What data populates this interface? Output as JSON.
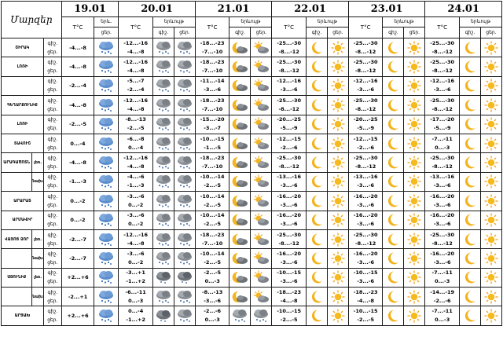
{
  "header": {
    "title": "Մարզեր",
    "dates": [
      "19.01",
      "20.01",
      "21.01",
      "22.01",
      "23.01",
      "24.01"
    ],
    "temp_label": "T°C",
    "weather_label_first": "երև.",
    "weather_label": "երևույթ",
    "day_label": "ցեր.",
    "night_label_short": "գիշ.",
    "night_label": "գիշ.",
    "day_label2": "ցեր."
  },
  "rows": [
    {
      "region": "ՇԻՐԱԿ",
      "sub": "",
      "times": [
        "գիշ.",
        "ցեր."
      ],
      "d19": {
        "temp": "-4...-8",
        "icon": "snow"
      },
      "d20": {
        "temp": [
          "-12...-16",
          "-4...-8"
        ],
        "icons": [
          "cloud-snow",
          "cloud-snow"
        ]
      },
      "d21": {
        "temp": [
          "-18...-23",
          "-7...-10"
        ],
        "icons": [
          "moon-cloud",
          "sun-cloud"
        ]
      },
      "d22": {
        "temp": [
          "-25...-30",
          "-8...-12"
        ],
        "icons": [
          "moon",
          "sun"
        ]
      },
      "d23": {
        "temp": [
          "-25...-30",
          "-8...-12"
        ],
        "icons": [
          "moon",
          "sun"
        ]
      },
      "d24": {
        "temp": [
          "-25...-30",
          "-8...-12"
        ],
        "icons": [
          "moon",
          "sun"
        ]
      }
    },
    {
      "region": "ԼՈՌԻ",
      "sub": "",
      "times": [
        "գիշ.",
        "ցեր."
      ],
      "d19": {
        "temp": "-4...-8",
        "icon": "snow"
      },
      "d20": {
        "temp": [
          "-12...-16",
          "-4...-8"
        ],
        "icons": [
          "cloud-snow",
          "cloud-snow"
        ]
      },
      "d21": {
        "temp": [
          "-18...-23",
          "-7...-10"
        ],
        "icons": [
          "moon-cloud",
          "sun-cloud"
        ]
      },
      "d22": {
        "temp": [
          "-25...-30",
          "-8...-12"
        ],
        "icons": [
          "moon",
          "sun"
        ]
      },
      "d23": {
        "temp": [
          "-25...-30",
          "-8...-12"
        ],
        "icons": [
          "moon",
          "sun"
        ]
      },
      "d24": {
        "temp": [
          "-25...-30",
          "-8...-12"
        ],
        "icons": [
          "moon",
          "sun"
        ]
      }
    },
    {
      "region": "",
      "sub": "",
      "times": [
        "գիշ.",
        "ցեր."
      ],
      "d19": {
        "temp": "-2...-4",
        "icon": "snow"
      },
      "d20": {
        "temp": [
          "-5...-7",
          "-2...-4"
        ],
        "icons": [
          "cloud-snow",
          "cloud-snow"
        ]
      },
      "d21": {
        "temp": [
          "-11...-14",
          "-3...-6"
        ],
        "icons": [
          "moon-cloud",
          "sun-cloud"
        ]
      },
      "d22": {
        "temp": [
          "-12...-16",
          "-3...-6"
        ],
        "icons": [
          "moon",
          "sun"
        ]
      },
      "d23": {
        "temp": [
          "-12...-16",
          "-3...-6"
        ],
        "icons": [
          "moon",
          "sun"
        ]
      },
      "d24": {
        "temp": [
          "-12...-16",
          "-3...-6"
        ],
        "icons": [
          "moon",
          "sun"
        ]
      }
    },
    {
      "region": "ԳԵՂԱՐՔՈՒՆԻՔ",
      "sub": "",
      "times": [
        "գիշ.",
        "ցեր."
      ],
      "d19": {
        "temp": "-4...-8",
        "icon": "snow"
      },
      "d20": {
        "temp": [
          "-12...-16",
          "-4...-8"
        ],
        "icons": [
          "cloud-snow",
          "cloud-snow"
        ]
      },
      "d21": {
        "temp": [
          "-18...-23",
          "-7...-10"
        ],
        "icons": [
          "moon-cloud",
          "sun-cloud"
        ]
      },
      "d22": {
        "temp": [
          "-25...-30",
          "-8...-12"
        ],
        "icons": [
          "moon",
          "sun"
        ]
      },
      "d23": {
        "temp": [
          "-25...-30",
          "-8...-12"
        ],
        "icons": [
          "moon",
          "sun"
        ]
      },
      "d24": {
        "temp": [
          "-25...-30",
          "-8...-12"
        ],
        "icons": [
          "moon",
          "sun"
        ]
      }
    },
    {
      "region": "ԼՈՌԻ",
      "sub": "",
      "times": [
        "գիշ.",
        "ցեր."
      ],
      "d19": {
        "temp": "-2...-5",
        "icon": "snow"
      },
      "d20": {
        "temp": [
          "-8...-13",
          "-2...-5"
        ],
        "icons": [
          "cloud-snow",
          "cloud-snow"
        ]
      },
      "d21": {
        "temp": [
          "-15...-20",
          "-3...-7"
        ],
        "icons": [
          "moon-cloud",
          "sun-cloud"
        ]
      },
      "d22": {
        "temp": [
          "-20...-25",
          "-5...-9"
        ],
        "icons": [
          "moon",
          "sun"
        ]
      },
      "d23": {
        "temp": [
          "-20...-25",
          "-5...-9"
        ],
        "icons": [
          "moon",
          "sun"
        ]
      },
      "d24": {
        "temp": [
          "-17...-20",
          "-5...-9"
        ],
        "icons": [
          "moon",
          "sun"
        ]
      }
    },
    {
      "region": "ՏԱՎՈՒՇ",
      "sub": "",
      "times": [
        "գիշ.",
        "ցեր."
      ],
      "d19": {
        "temp": "0...-4",
        "icon": "snow"
      },
      "d20": {
        "temp": [
          "-6...-8",
          "0...-4"
        ],
        "icons": [
          "cloud-snow",
          "cloud-snow"
        ]
      },
      "d21": {
        "temp": [
          "-10...-15",
          "-1...-5"
        ],
        "icons": [
          "moon-cloud",
          "sun-cloud"
        ]
      },
      "d22": {
        "temp": [
          "-12...-15",
          "-2...-6"
        ],
        "icons": [
          "moon",
          "sun"
        ]
      },
      "d23": {
        "temp": [
          "-12...-15",
          "-2...-6"
        ],
        "icons": [
          "moon",
          "sun"
        ]
      },
      "d24": {
        "temp": [
          "-7...-11",
          "0...-3"
        ],
        "icons": [
          "moon",
          "sun"
        ]
      }
    },
    {
      "region": "ԱՐԱԳԱԾՈՏՆ",
      "sub": "լեռ.",
      "times": [
        "գիշ.",
        "ցեր."
      ],
      "d19": {
        "temp": "-4...-8",
        "icon": "snow"
      },
      "d20": {
        "temp": [
          "-12...-16",
          "-4...-8"
        ],
        "icons": [
          "cloud-snow",
          "cloud-snow"
        ]
      },
      "d21": {
        "temp": [
          "-18...-23",
          "-7...-10"
        ],
        "icons": [
          "moon-cloud",
          "sun-cloud"
        ]
      },
      "d22": {
        "temp": [
          "-25...-30",
          "-8...-12"
        ],
        "icons": [
          "moon",
          "sun"
        ]
      },
      "d23": {
        "temp": [
          "-25...-30",
          "-8...-12"
        ],
        "icons": [
          "moon",
          "sun"
        ]
      },
      "d24": {
        "temp": [
          "-25...-30",
          "-8...-12"
        ],
        "icons": [
          "moon",
          "sun"
        ]
      }
    },
    {
      "region": "",
      "sub": "նախ.",
      "times": [
        "գիշ.",
        "ցեր."
      ],
      "d19": {
        "temp": "-1...-3",
        "icon": "snow"
      },
      "d20": {
        "temp": [
          "-4...-6",
          "-1...-3"
        ],
        "icons": [
          "cloud-snow",
          "cloud-snow"
        ]
      },
      "d21": {
        "temp": [
          "-10...-14",
          "-2...-5"
        ],
        "icons": [
          "moon-cloud",
          "sun-cloud"
        ]
      },
      "d22": {
        "temp": [
          "-13...-16",
          "-3...-6"
        ],
        "icons": [
          "moon",
          "sun"
        ]
      },
      "d23": {
        "temp": [
          "-13...-16",
          "-3...-6"
        ],
        "icons": [
          "moon",
          "sun"
        ]
      },
      "d24": {
        "temp": [
          "-13...-16",
          "-3...-6"
        ],
        "icons": [
          "moon",
          "sun"
        ]
      }
    },
    {
      "region": "ԱՐԱՐԱՏ",
      "sub": "",
      "times": [
        "գիշ.",
        "ցեր."
      ],
      "d19": {
        "temp": "0...-2",
        "icon": "snow"
      },
      "d20": {
        "temp": [
          "-3...-6",
          "0...-2"
        ],
        "icons": [
          "cloud-snow",
          "cloud-snow"
        ]
      },
      "d21": {
        "temp": [
          "-10...-14",
          "-2...-5"
        ],
        "icons": [
          "moon-cloud",
          "sun-cloud"
        ]
      },
      "d22": {
        "temp": [
          "-16...-20",
          "-3...-6"
        ],
        "icons": [
          "moon",
          "sun"
        ]
      },
      "d23": {
        "temp": [
          "-16...-20",
          "-3...-6"
        ],
        "icons": [
          "moon",
          "sun"
        ]
      },
      "d24": {
        "temp": [
          "-16...-20",
          "-3...-6"
        ],
        "icons": [
          "moon",
          "sun"
        ]
      }
    },
    {
      "region": "ԱՐՄԱՎԻՐ",
      "sub": "",
      "times": [
        "գիշ.",
        "ցեր."
      ],
      "d19": {
        "temp": "0...-2",
        "icon": "snow"
      },
      "d20": {
        "temp": [
          "-3...-6",
          "0...-2"
        ],
        "icons": [
          "cloud-snow",
          "cloud-snow"
        ]
      },
      "d21": {
        "temp": [
          "-10...-14",
          "-2...-5"
        ],
        "icons": [
          "moon-cloud",
          "sun-cloud"
        ]
      },
      "d22": {
        "temp": [
          "-16...-20",
          "-3...-6"
        ],
        "icons": [
          "moon",
          "sun"
        ]
      },
      "d23": {
        "temp": [
          "-16...-20",
          "-3...-6"
        ],
        "icons": [
          "moon",
          "sun"
        ]
      },
      "d24": {
        "temp": [
          "-16...-20",
          "-3...-6"
        ],
        "icons": [
          "moon",
          "sun"
        ]
      }
    },
    {
      "region": "ՎԱՅՈՑ ՁՈՐ",
      "sub": "լեռ.",
      "times": [
        "գիշ.",
        "ցեր."
      ],
      "d19": {
        "temp": "-2...-7",
        "icon": "snow"
      },
      "d20": {
        "temp": [
          "-12...-16",
          "-4...-8"
        ],
        "icons": [
          "cloud-snow",
          "cloud-snow"
        ]
      },
      "d21": {
        "temp": [
          "-18...-23",
          "-7...-10"
        ],
        "icons": [
          "moon-cloud",
          "sun-cloud"
        ]
      },
      "d22": {
        "temp": [
          "-25...-30",
          "-8...-12"
        ],
        "icons": [
          "moon",
          "sun"
        ]
      },
      "d23": {
        "temp": [
          "-25...-30",
          "-8...-12"
        ],
        "icons": [
          "moon",
          "sun"
        ]
      },
      "d24": {
        "temp": [
          "-25...-30",
          "-8...-12"
        ],
        "icons": [
          "moon",
          "sun"
        ]
      }
    },
    {
      "region": "",
      "sub": "նախ.",
      "times": [
        "գիշ.",
        "ցեր."
      ],
      "d19": {
        "temp": "-2...-7",
        "icon": "snow"
      },
      "d20": {
        "temp": [
          "-3...-6",
          "0...-2"
        ],
        "icons": [
          "cloud-snow",
          "cloud-snow"
        ]
      },
      "d21": {
        "temp": [
          "-10...-14",
          "-2...-5"
        ],
        "icons": [
          "moon-cloud",
          "sun-cloud"
        ]
      },
      "d22": {
        "temp": [
          "-16...-20",
          "-3...-6"
        ],
        "icons": [
          "moon",
          "sun"
        ]
      },
      "d23": {
        "temp": [
          "-16...-20",
          "-3...-6"
        ],
        "icons": [
          "moon",
          "sun"
        ]
      },
      "d24": {
        "temp": [
          "-16...-20",
          "-3...-6"
        ],
        "icons": [
          "moon",
          "sun"
        ]
      }
    },
    {
      "region": "ՍՅՈՒՆԻՔ",
      "sub": "լեռ.",
      "times": [
        "գիշ.",
        "ցեր."
      ],
      "d19": {
        "temp": "+2...+6",
        "icon": "snow"
      },
      "d20": {
        "temp": [
          "-3...+1",
          "-1...+2"
        ],
        "icons": [
          "cloud-dark",
          "cloud-dark"
        ]
      },
      "d21": {
        "temp": [
          "-2...-5",
          "0...-3"
        ],
        "icons": [
          "moon-cloud",
          "sun-cloud"
        ]
      },
      "d22": {
        "temp": [
          "-10...-15",
          "-3...-6"
        ],
        "icons": [
          "moon",
          "sun"
        ]
      },
      "d23": {
        "temp": [
          "-10...-15",
          "-3...-6"
        ],
        "icons": [
          "moon",
          "sun"
        ]
      },
      "d24": {
        "temp": [
          "-7...-11",
          "0...-3"
        ],
        "icons": [
          "moon",
          "sun"
        ]
      }
    },
    {
      "region": "",
      "sub": "նախ.",
      "times": [
        "գիշ.",
        "ցեր."
      ],
      "d19": {
        "temp": "-2...+1",
        "icon": "snow"
      },
      "d20": {
        "temp": [
          "-6...-11",
          "0...-3"
        ],
        "icons": [
          "cloud-snow",
          "cloud-snow"
        ]
      },
      "d21": {
        "temp": [
          "-8...-13",
          "-3...-6"
        ],
        "icons": [
          "moon-cloud",
          "sun-cloud"
        ]
      },
      "d22": {
        "temp": [
          "-18...-23",
          "-4...-8"
        ],
        "icons": [
          "moon",
          "sun"
        ]
      },
      "d23": {
        "temp": [
          "-18...-23",
          "-4...-8"
        ],
        "icons": [
          "moon",
          "sun"
        ]
      },
      "d24": {
        "temp": [
          "-14...-19",
          "-2...-6"
        ],
        "icons": [
          "moon",
          "sun"
        ]
      }
    },
    {
      "region": "ԱՐՑԱԽ",
      "sub": "",
      "times": [
        "գիշ.",
        "ցեր."
      ],
      "d19": {
        "temp": "+2...+6",
        "icon": "snow"
      },
      "d20": {
        "temp": [
          "0...-4",
          "-1...+2"
        ],
        "icons": [
          "cloud-dark",
          "cloud-snow"
        ]
      },
      "d21": {
        "temp": [
          "-2...-6",
          "0...-3"
        ],
        "icons": [
          "cloud-snow",
          "cloud-snow"
        ]
      },
      "d22": {
        "temp": [
          "-10...-15",
          "-2...-5"
        ],
        "icons": [
          "moon",
          "sun"
        ]
      },
      "d23": {
        "temp": [
          "-10...-15",
          "-2...-5"
        ],
        "icons": [
          "moon",
          "sun"
        ]
      },
      "d24": {
        "temp": [
          "-7...-11",
          "0...-3"
        ],
        "icons": [
          "moon",
          "sun"
        ]
      }
    }
  ]
}
